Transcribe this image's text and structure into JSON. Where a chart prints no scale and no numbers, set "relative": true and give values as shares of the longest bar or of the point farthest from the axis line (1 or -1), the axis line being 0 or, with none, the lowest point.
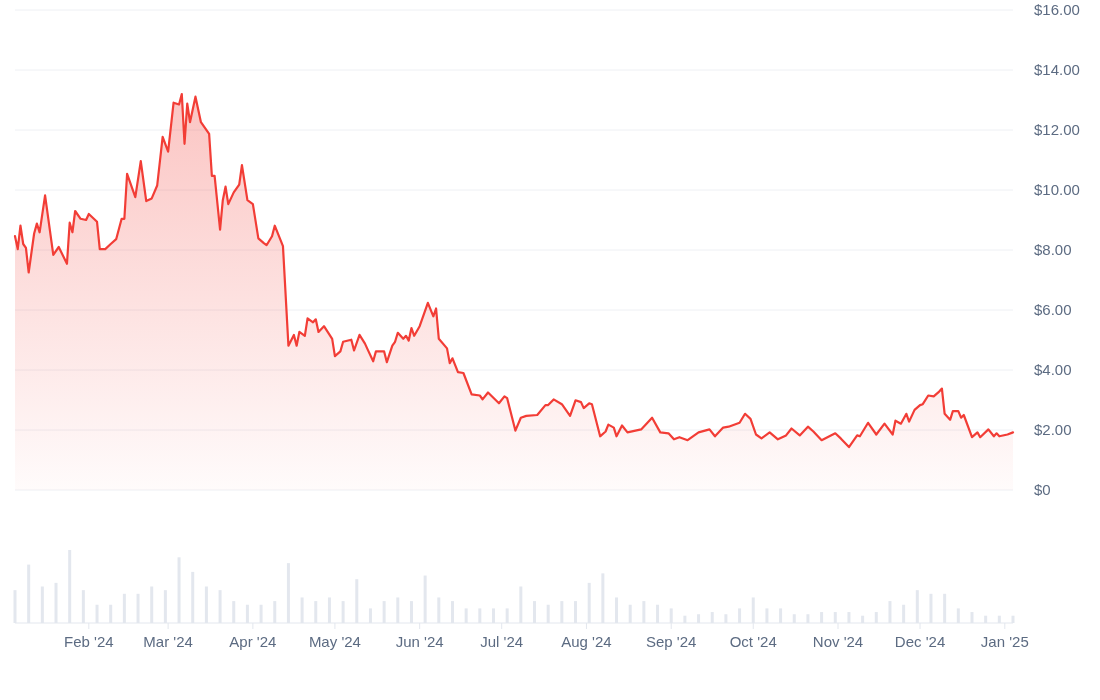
{
  "chart_data": [
    {
      "type": "area",
      "grid": "y",
      "x": [
        "2024-01-05",
        "2024-01-06",
        "2024-01-07",
        "2024-01-08",
        "2024-01-09",
        "2024-01-10",
        "2024-01-12",
        "2024-01-13",
        "2024-01-14",
        "2024-01-16",
        "2024-01-19",
        "2024-01-21",
        "2024-01-24",
        "2024-01-25",
        "2024-01-26",
        "2024-01-27",
        "2024-01-29",
        "2024-01-31",
        "2024-02-01",
        "2024-02-04",
        "2024-02-05",
        "2024-02-07",
        "2024-02-09",
        "2024-02-11",
        "2024-02-13",
        "2024-02-14",
        "2024-02-15",
        "2024-02-18",
        "2024-02-20",
        "2024-02-22",
        "2024-02-24",
        "2024-02-26",
        "2024-02-28",
        "2024-03-01",
        "2024-03-03",
        "2024-03-05",
        "2024-03-06",
        "2024-03-07",
        "2024-03-08",
        "2024-03-09",
        "2024-03-11",
        "2024-03-13",
        "2024-03-16",
        "2024-03-17",
        "2024-03-18",
        "2024-03-20",
        "2024-03-21",
        "2024-03-22",
        "2024-03-23",
        "2024-03-25",
        "2024-03-27",
        "2024-03-28",
        "2024-03-30",
        "2024-04-01",
        "2024-04-03",
        "2024-04-05",
        "2024-04-06",
        "2024-04-08",
        "2024-04-09",
        "2024-04-12",
        "2024-04-14",
        "2024-04-16",
        "2024-04-17",
        "2024-04-18",
        "2024-04-20",
        "2024-04-21",
        "2024-04-23",
        "2024-04-24",
        "2024-04-25",
        "2024-04-27",
        "2024-04-30",
        "2024-05-01",
        "2024-05-03",
        "2024-05-04",
        "2024-05-07",
        "2024-05-08",
        "2024-05-10",
        "2024-05-12",
        "2024-05-13",
        "2024-05-15",
        "2024-05-16",
        "2024-05-19",
        "2024-05-20",
        "2024-05-22",
        "2024-05-23",
        "2024-05-24",
        "2024-05-26",
        "2024-05-27",
        "2024-05-28",
        "2024-05-29",
        "2024-05-30",
        "2024-06-01",
        "2024-06-04",
        "2024-06-06",
        "2024-06-07",
        "2024-06-08",
        "2024-06-11",
        "2024-06-12",
        "2024-06-13",
        "2024-06-15",
        "2024-06-17",
        "2024-06-20",
        "2024-06-23",
        "2024-06-24",
        "2024-06-26",
        "2024-06-30",
        "2024-07-02",
        "2024-07-03",
        "2024-07-06",
        "2024-07-08",
        "2024-07-10",
        "2024-07-14",
        "2024-07-17",
        "2024-07-18",
        "2024-07-20",
        "2024-07-23",
        "2024-07-26",
        "2024-07-28",
        "2024-07-30",
        "2024-07-31",
        "2024-08-02",
        "2024-08-03",
        "2024-08-06",
        "2024-08-08",
        "2024-08-09",
        "2024-08-11",
        "2024-08-12",
        "2024-08-14",
        "2024-08-16",
        "2024-08-21",
        "2024-08-25",
        "2024-08-28",
        "2024-08-31",
        "2024-09-02",
        "2024-09-04",
        "2024-09-07",
        "2024-09-11",
        "2024-09-15",
        "2024-09-17",
        "2024-09-20",
        "2024-09-22",
        "2024-09-26",
        "2024-09-28",
        "2024-09-30",
        "2024-10-02",
        "2024-10-04",
        "2024-10-07",
        "2024-10-10",
        "2024-10-13",
        "2024-10-15",
        "2024-10-18",
        "2024-10-21",
        "2024-10-23",
        "2024-10-26",
        "2024-10-31",
        "2024-11-02",
        "2024-11-05",
        "2024-11-08",
        "2024-11-09",
        "2024-11-12",
        "2024-11-15",
        "2024-11-18",
        "2024-11-21",
        "2024-11-22",
        "2024-11-24",
        "2024-11-26",
        "2024-11-27",
        "2024-11-29",
        "2024-12-01",
        "2024-12-02",
        "2024-12-04",
        "2024-12-06",
        "2024-12-08",
        "2024-12-09",
        "2024-12-10",
        "2024-12-12",
        "2024-12-13",
        "2024-12-15",
        "2024-12-16",
        "2024-12-17",
        "2024-12-20",
        "2024-12-22",
        "2024-12-23",
        "2024-12-26",
        "2024-12-28",
        "2024-12-29",
        "2024-12-30",
        "2025-01-02",
        "2025-01-04"
      ],
      "series": [
        {
          "color": "#f23d36",
          "values": [
            8.46,
            8.03,
            8.81,
            8.2,
            8.07,
            7.25,
            8.55,
            8.88,
            8.59,
            9.82,
            7.84,
            8.1,
            7.54,
            8.91,
            8.59,
            9.3,
            9.04,
            9.0,
            9.2,
            8.94,
            8.03,
            8.03,
            8.2,
            8.36,
            9.04,
            9.04,
            10.54,
            9.76,
            10.96,
            9.63,
            9.72,
            10.15,
            11.77,
            11.28,
            12.91,
            12.85,
            13.2,
            11.54,
            12.88,
            12.26,
            13.11,
            12.26,
            11.87,
            10.47,
            10.47,
            8.68,
            9.66,
            10.11,
            9.53,
            9.92,
            10.18,
            10.83,
            9.66,
            9.53,
            8.39,
            8.23,
            8.16,
            8.46,
            8.81,
            8.13,
            4.81,
            5.17,
            4.81,
            5.27,
            5.14,
            5.72,
            5.59,
            5.69,
            5.27,
            5.46,
            5.04,
            4.46,
            4.62,
            4.94,
            5.01,
            4.65,
            5.17,
            4.88,
            4.68,
            4.29,
            4.62,
            4.62,
            4.26,
            4.81,
            4.94,
            5.24,
            5.04,
            5.14,
            4.98,
            5.4,
            5.14,
            5.46,
            6.24,
            5.79,
            6.05,
            5.04,
            4.72,
            4.23,
            4.39,
            3.93,
            3.9,
            3.19,
            3.15,
            3.02,
            3.25,
            2.89,
            3.12,
            3.06,
            1.98,
            2.41,
            2.47,
            2.5,
            2.83,
            2.83,
            3.02,
            2.86,
            2.47,
            2.99,
            2.93,
            2.73,
            2.89,
            2.86,
            1.79,
            1.95,
            2.18,
            2.08,
            1.79,
            2.15,
            1.92,
            2.02,
            2.41,
            1.92,
            1.89,
            1.69,
            1.76,
            1.66,
            1.92,
            2.02,
            1.79,
            2.08,
            2.11,
            2.24,
            2.54,
            2.37,
            1.85,
            1.72,
            1.92,
            1.69,
            1.82,
            2.05,
            1.82,
            2.11,
            1.95,
            1.66,
            1.89,
            1.72,
            1.43,
            1.82,
            1.79,
            2.24,
            1.85,
            2.21,
            1.85,
            2.31,
            2.21,
            2.54,
            2.28,
            2.67,
            2.83,
            2.86,
            3.15,
            3.12,
            3.28,
            3.38,
            2.54,
            2.34,
            2.63,
            2.63,
            2.41,
            2.5,
            1.76,
            1.92,
            1.76,
            2.02,
            1.79,
            1.89,
            1.79,
            1.85,
            1.92
          ]
        }
      ],
      "xlim": [
        "2024-01-05",
        "2025-01-04"
      ],
      "ylim": [
        0,
        16
      ],
      "yticks": [
        {
          "value": 0,
          "label": "$0"
        },
        {
          "value": 2,
          "label": "$2.00"
        },
        {
          "value": 4,
          "label": "$4.00"
        },
        {
          "value": 6,
          "label": "$6.00"
        },
        {
          "value": 8,
          "label": "$8.00"
        },
        {
          "value": 10,
          "label": "$10.00"
        },
        {
          "value": 12,
          "label": "$12.00"
        },
        {
          "value": 14,
          "label": "$14.00"
        },
        {
          "value": 16,
          "label": "$16.00"
        }
      ]
    },
    {
      "type": "bar",
      "relative": true,
      "tick_labels": "x",
      "color": "#e3e7ee",
      "x": [
        "2024-01-05",
        "2024-01-10",
        "2024-01-15",
        "2024-01-20",
        "2024-01-25",
        "2024-01-30",
        "2024-02-04",
        "2024-02-09",
        "2024-02-14",
        "2024-02-19",
        "2024-02-24",
        "2024-02-29",
        "2024-03-05",
        "2024-03-10",
        "2024-03-15",
        "2024-03-20",
        "2024-03-25",
        "2024-03-30",
        "2024-04-04",
        "2024-04-09",
        "2024-04-14",
        "2024-04-19",
        "2024-04-24",
        "2024-04-29",
        "2024-05-04",
        "2024-05-09",
        "2024-05-14",
        "2024-05-19",
        "2024-05-24",
        "2024-05-29",
        "2024-06-03",
        "2024-06-08",
        "2024-06-13",
        "2024-06-18",
        "2024-06-23",
        "2024-06-28",
        "2024-07-03",
        "2024-07-08",
        "2024-07-13",
        "2024-07-18",
        "2024-07-23",
        "2024-07-28",
        "2024-08-02",
        "2024-08-07",
        "2024-08-12",
        "2024-08-17",
        "2024-08-22",
        "2024-08-27",
        "2024-09-01",
        "2024-09-06",
        "2024-09-11",
        "2024-09-16",
        "2024-09-21",
        "2024-09-26",
        "2024-10-01",
        "2024-10-06",
        "2024-10-11",
        "2024-10-16",
        "2024-10-21",
        "2024-10-26",
        "2024-10-31",
        "2024-11-05",
        "2024-11-10",
        "2024-11-15",
        "2024-11-20",
        "2024-11-25",
        "2024-11-30",
        "2024-12-05",
        "2024-12-10",
        "2024-12-15",
        "2024-12-20",
        "2024-12-25",
        "2024-12-30",
        "2025-01-04"
      ],
      "values": [
        0.45,
        0.8,
        0.5,
        0.55,
        1,
        0.45,
        0.25,
        0.25,
        0.4,
        0.4,
        0.5,
        0.45,
        0.9,
        0.7,
        0.5,
        0.45,
        0.3,
        0.25,
        0.25,
        0.3,
        0.82,
        0.35,
        0.3,
        0.35,
        0.3,
        0.6,
        0.2,
        0.3,
        0.35,
        0.3,
        0.65,
        0.35,
        0.3,
        0.2,
        0.2,
        0.2,
        0.2,
        0.5,
        0.3,
        0.25,
        0.3,
        0.3,
        0.55,
        0.68,
        0.35,
        0.25,
        0.3,
        0.25,
        0.2,
        0.1,
        0.12,
        0.15,
        0.12,
        0.2,
        0.35,
        0.2,
        0.2,
        0.12,
        0.12,
        0.15,
        0.15,
        0.15,
        0.1,
        0.15,
        0.3,
        0.25,
        0.45,
        0.4,
        0.4,
        0.2,
        0.15,
        0.1,
        0.1,
        0.1
      ],
      "xlim": [
        "2024-01-05",
        "2025-01-04"
      ],
      "xticks": [
        {
          "value": "2024-02-01",
          "label": "Feb '24"
        },
        {
          "value": "2024-03-01",
          "label": "Mar '24"
        },
        {
          "value": "2024-04-01",
          "label": "Apr '24"
        },
        {
          "value": "2024-05-01",
          "label": "May '24"
        },
        {
          "value": "2024-06-01",
          "label": "Jun '24"
        },
        {
          "value": "2024-07-01",
          "label": "Jul '24"
        },
        {
          "value": "2024-08-01",
          "label": "Aug '24"
        },
        {
          "value": "2024-09-01",
          "label": "Sep '24"
        },
        {
          "value": "2024-10-01",
          "label": "Oct '24"
        },
        {
          "value": "2024-11-01",
          "label": "Nov '24"
        },
        {
          "value": "2024-12-01",
          "label": "Dec '24"
        },
        {
          "value": "2025-01-01",
          "label": "Jan '25"
        }
      ]
    }
  ]
}
